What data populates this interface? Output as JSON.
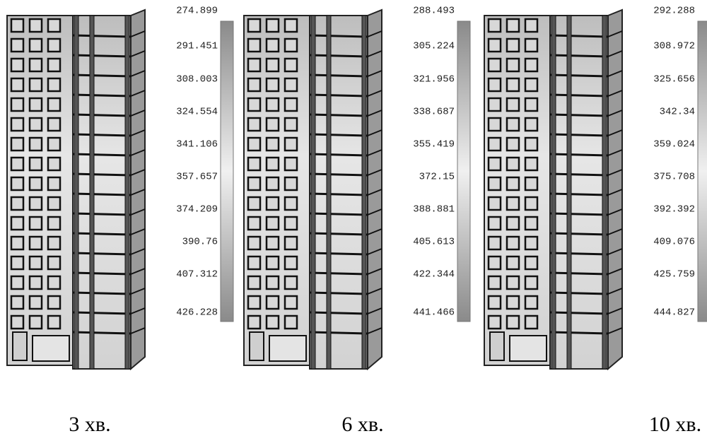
{
  "panels": [
    {
      "scale_labels": [
        "274.899",
        "291.451",
        "308.003",
        "324.554",
        "341.106",
        "357.657",
        "374.209",
        "390.76",
        "407.312",
        "426.228"
      ],
      "caption": "3 хв."
    },
    {
      "scale_labels": [
        "288.493",
        "305.224",
        "321.956",
        "338.687",
        "355.419",
        "372.15",
        "388.881",
        "405.613",
        "422.344",
        "441.466"
      ],
      "caption": "6 хв."
    },
    {
      "scale_labels": [
        "292.288",
        "308.972",
        "325.656",
        "342.34",
        "359.024",
        "375.708",
        "392.392",
        "409.076",
        "425.759",
        "444.827"
      ],
      "caption": "10 хв."
    }
  ]
}
